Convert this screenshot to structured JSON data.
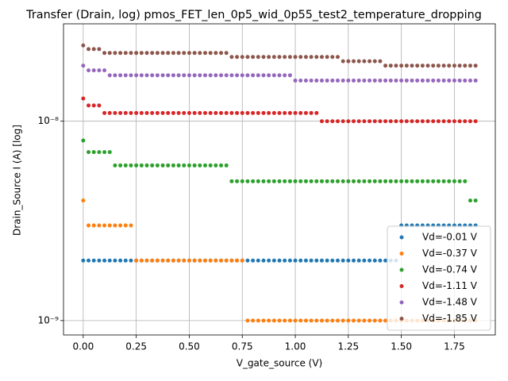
{
  "chart_data": {
    "type": "scatter",
    "title": "Transfer (Drain, log) pmos_FET_len_0p5_wid_0p55_test2_temperature_dropping",
    "x_label": "V_gate_source (V)",
    "y_label": "Drain_Source I (A) [log]",
    "log_y": true,
    "grid": true,
    "legend": "lower right",
    "xlim": [
      -0.093,
      1.943
    ],
    "ylim": [
      8.47e-10,
      3.08e-08
    ],
    "xticks": [
      {
        "value": 0,
        "label": "0.00"
      },
      {
        "value": 0.25,
        "label": "0.25"
      },
      {
        "value": 0.5,
        "label": "0.50"
      },
      {
        "value": 0.75,
        "label": "0.75"
      },
      {
        "value": 1,
        "label": "1.00"
      },
      {
        "value": 1.25,
        "label": "1.25"
      },
      {
        "value": 1.5,
        "label": "1.50"
      },
      {
        "value": 1.75,
        "label": "1.75"
      }
    ],
    "yticks": [
      {
        "value": 1e-09,
        "label": "10⁻⁹"
      },
      {
        "value": 1e-08,
        "label": "10⁻⁸"
      }
    ],
    "x": [
      0,
      0.025,
      0.05,
      0.075,
      0.1,
      0.125,
      0.15,
      0.175,
      0.2,
      0.225,
      0.25,
      0.275,
      0.3,
      0.325,
      0.35,
      0.375,
      0.4,
      0.425,
      0.45,
      0.475,
      0.5,
      0.525,
      0.55,
      0.575,
      0.6,
      0.625,
      0.65,
      0.675,
      0.7,
      0.725,
      0.75,
      0.775,
      0.8,
      0.825,
      0.85,
      0.875,
      0.9,
      0.925,
      0.95,
      0.975,
      1,
      1.025,
      1.05,
      1.075,
      1.1,
      1.125,
      1.15,
      1.175,
      1.2,
      1.225,
      1.25,
      1.275,
      1.3,
      1.325,
      1.35,
      1.375,
      1.4,
      1.425,
      1.45,
      1.475,
      1.5,
      1.525,
      1.55,
      1.575,
      1.6,
      1.625,
      1.65,
      1.675,
      1.7,
      1.725,
      1.75,
      1.775,
      1.8,
      1.825,
      1.85
    ],
    "series": [
      {
        "name": "Vd=-0.01 V",
        "color": "#1f77b4",
        "values": [
          2e-09,
          2e-09,
          2e-09,
          2e-09,
          2e-09,
          2e-09,
          2e-09,
          2e-09,
          2e-09,
          2e-09,
          2e-09,
          2e-09,
          2e-09,
          2e-09,
          2e-09,
          2e-09,
          2e-09,
          2e-09,
          2e-09,
          2e-09,
          2e-09,
          2e-09,
          2e-09,
          2e-09,
          2e-09,
          2e-09,
          2e-09,
          2e-09,
          2e-09,
          2e-09,
          2e-09,
          2e-09,
          2e-09,
          2e-09,
          2e-09,
          2e-09,
          2e-09,
          2e-09,
          2e-09,
          2e-09,
          2e-09,
          2e-09,
          2e-09,
          2e-09,
          2e-09,
          2e-09,
          2e-09,
          2e-09,
          2e-09,
          2e-09,
          2e-09,
          2e-09,
          2e-09,
          2e-09,
          2e-09,
          2e-09,
          2e-09,
          2e-09,
          2e-09,
          2e-09,
          3e-09,
          3e-09,
          3e-09,
          3e-09,
          3e-09,
          3e-09,
          3e-09,
          3e-09,
          3e-09,
          3e-09,
          3e-09,
          3e-09,
          3e-09,
          3e-09,
          3e-09
        ]
      },
      {
        "name": "Vd=-0.37 V",
        "color": "#ff7f0e",
        "values": [
          4e-09,
          3e-09,
          3e-09,
          3e-09,
          3e-09,
          3e-09,
          3e-09,
          3e-09,
          3e-09,
          3e-09,
          2e-09,
          2e-09,
          2e-09,
          2e-09,
          2e-09,
          2e-09,
          2e-09,
          2e-09,
          2e-09,
          2e-09,
          2e-09,
          2e-09,
          2e-09,
          2e-09,
          2e-09,
          2e-09,
          2e-09,
          2e-09,
          2e-09,
          2e-09,
          2e-09,
          1e-09,
          1e-09,
          1e-09,
          1e-09,
          1e-09,
          1e-09,
          1e-09,
          1e-09,
          1e-09,
          1e-09,
          1e-09,
          1e-09,
          1e-09,
          1e-09,
          1e-09,
          1e-09,
          1e-09,
          1e-09,
          1e-09,
          1e-09,
          1e-09,
          1e-09,
          1e-09,
          1e-09,
          1e-09,
          1e-09,
          1e-09,
          1e-09,
          1e-09,
          1e-09,
          1e-09,
          1e-09,
          1e-09,
          1e-09,
          1e-09,
          1e-09,
          1e-09,
          1e-09,
          1e-09,
          1e-09,
          1e-09,
          1e-09,
          1e-09,
          1e-09
        ]
      },
      {
        "name": "Vd=-0.74 V",
        "color": "#2ca02c",
        "values": [
          8e-09,
          7e-09,
          7e-09,
          7e-09,
          7e-09,
          7e-09,
          6e-09,
          6e-09,
          6e-09,
          6e-09,
          6e-09,
          6e-09,
          6e-09,
          6e-09,
          6e-09,
          6e-09,
          6e-09,
          6e-09,
          6e-09,
          6e-09,
          6e-09,
          6e-09,
          6e-09,
          6e-09,
          6e-09,
          6e-09,
          6e-09,
          6e-09,
          5e-09,
          5e-09,
          5e-09,
          5e-09,
          5e-09,
          5e-09,
          5e-09,
          5e-09,
          5e-09,
          5e-09,
          5e-09,
          5e-09,
          5e-09,
          5e-09,
          5e-09,
          5e-09,
          5e-09,
          5e-09,
          5e-09,
          5e-09,
          5e-09,
          5e-09,
          5e-09,
          5e-09,
          5e-09,
          5e-09,
          5e-09,
          5e-09,
          5e-09,
          5e-09,
          5e-09,
          5e-09,
          5e-09,
          5e-09,
          5e-09,
          5e-09,
          5e-09,
          5e-09,
          5e-09,
          5e-09,
          5e-09,
          5e-09,
          5e-09,
          5e-09,
          5e-09,
          4e-09,
          4e-09
        ]
      },
      {
        "name": "Vd=-1.11 V",
        "color": "#d62728",
        "values": [
          1.3e-08,
          1.2e-08,
          1.2e-08,
          1.2e-08,
          1.1e-08,
          1.1e-08,
          1.1e-08,
          1.1e-08,
          1.1e-08,
          1.1e-08,
          1.1e-08,
          1.1e-08,
          1.1e-08,
          1.1e-08,
          1.1e-08,
          1.1e-08,
          1.1e-08,
          1.1e-08,
          1.1e-08,
          1.1e-08,
          1.1e-08,
          1.1e-08,
          1.1e-08,
          1.1e-08,
          1.1e-08,
          1.1e-08,
          1.1e-08,
          1.1e-08,
          1.1e-08,
          1.1e-08,
          1.1e-08,
          1.1e-08,
          1.1e-08,
          1.1e-08,
          1.1e-08,
          1.1e-08,
          1.1e-08,
          1.1e-08,
          1.1e-08,
          1.1e-08,
          1.1e-08,
          1.1e-08,
          1.1e-08,
          1.1e-08,
          1.1e-08,
          1e-08,
          1e-08,
          1e-08,
          1e-08,
          1e-08,
          1e-08,
          1e-08,
          1e-08,
          1e-08,
          1e-08,
          1e-08,
          1e-08,
          1e-08,
          1e-08,
          1e-08,
          1e-08,
          1e-08,
          1e-08,
          1e-08,
          1e-08,
          1e-08,
          1e-08,
          1e-08,
          1e-08,
          1e-08,
          1e-08,
          1e-08,
          1e-08,
          1e-08,
          1e-08
        ]
      },
      {
        "name": "Vd=-1.48 V",
        "color": "#9467bd",
        "values": [
          1.9e-08,
          1.8e-08,
          1.8e-08,
          1.8e-08,
          1.8e-08,
          1.7e-08,
          1.7e-08,
          1.7e-08,
          1.7e-08,
          1.7e-08,
          1.7e-08,
          1.7e-08,
          1.7e-08,
          1.7e-08,
          1.7e-08,
          1.7e-08,
          1.7e-08,
          1.7e-08,
          1.7e-08,
          1.7e-08,
          1.7e-08,
          1.7e-08,
          1.7e-08,
          1.7e-08,
          1.7e-08,
          1.7e-08,
          1.7e-08,
          1.7e-08,
          1.7e-08,
          1.7e-08,
          1.7e-08,
          1.7e-08,
          1.7e-08,
          1.7e-08,
          1.7e-08,
          1.7e-08,
          1.7e-08,
          1.7e-08,
          1.7e-08,
          1.7e-08,
          1.6e-08,
          1.6e-08,
          1.6e-08,
          1.6e-08,
          1.6e-08,
          1.6e-08,
          1.6e-08,
          1.6e-08,
          1.6e-08,
          1.6e-08,
          1.6e-08,
          1.6e-08,
          1.6e-08,
          1.6e-08,
          1.6e-08,
          1.6e-08,
          1.6e-08,
          1.6e-08,
          1.6e-08,
          1.6e-08,
          1.6e-08,
          1.6e-08,
          1.6e-08,
          1.6e-08,
          1.6e-08,
          1.6e-08,
          1.6e-08,
          1.6e-08,
          1.6e-08,
          1.6e-08,
          1.6e-08,
          1.6e-08,
          1.6e-08,
          1.6e-08,
          1.6e-08
        ]
      },
      {
        "name": "Vd=-1.85 V",
        "color": "#8c564b",
        "values": [
          2.4e-08,
          2.3e-08,
          2.3e-08,
          2.3e-08,
          2.2e-08,
          2.2e-08,
          2.2e-08,
          2.2e-08,
          2.2e-08,
          2.2e-08,
          2.2e-08,
          2.2e-08,
          2.2e-08,
          2.2e-08,
          2.2e-08,
          2.2e-08,
          2.2e-08,
          2.2e-08,
          2.2e-08,
          2.2e-08,
          2.2e-08,
          2.2e-08,
          2.2e-08,
          2.2e-08,
          2.2e-08,
          2.2e-08,
          2.2e-08,
          2.2e-08,
          2.1e-08,
          2.1e-08,
          2.1e-08,
          2.1e-08,
          2.1e-08,
          2.1e-08,
          2.1e-08,
          2.1e-08,
          2.1e-08,
          2.1e-08,
          2.1e-08,
          2.1e-08,
          2.1e-08,
          2.1e-08,
          2.1e-08,
          2.1e-08,
          2.1e-08,
          2.1e-08,
          2.1e-08,
          2.1e-08,
          2.1e-08,
          2e-08,
          2e-08,
          2e-08,
          2e-08,
          2e-08,
          2e-08,
          2e-08,
          2e-08,
          1.9e-08,
          1.9e-08,
          1.9e-08,
          1.9e-08,
          1.9e-08,
          1.9e-08,
          1.9e-08,
          1.9e-08,
          1.9e-08,
          1.9e-08,
          1.9e-08,
          1.9e-08,
          1.9e-08,
          1.9e-08,
          1.9e-08,
          1.9e-08,
          1.9e-08,
          1.9e-08
        ]
      }
    ]
  }
}
